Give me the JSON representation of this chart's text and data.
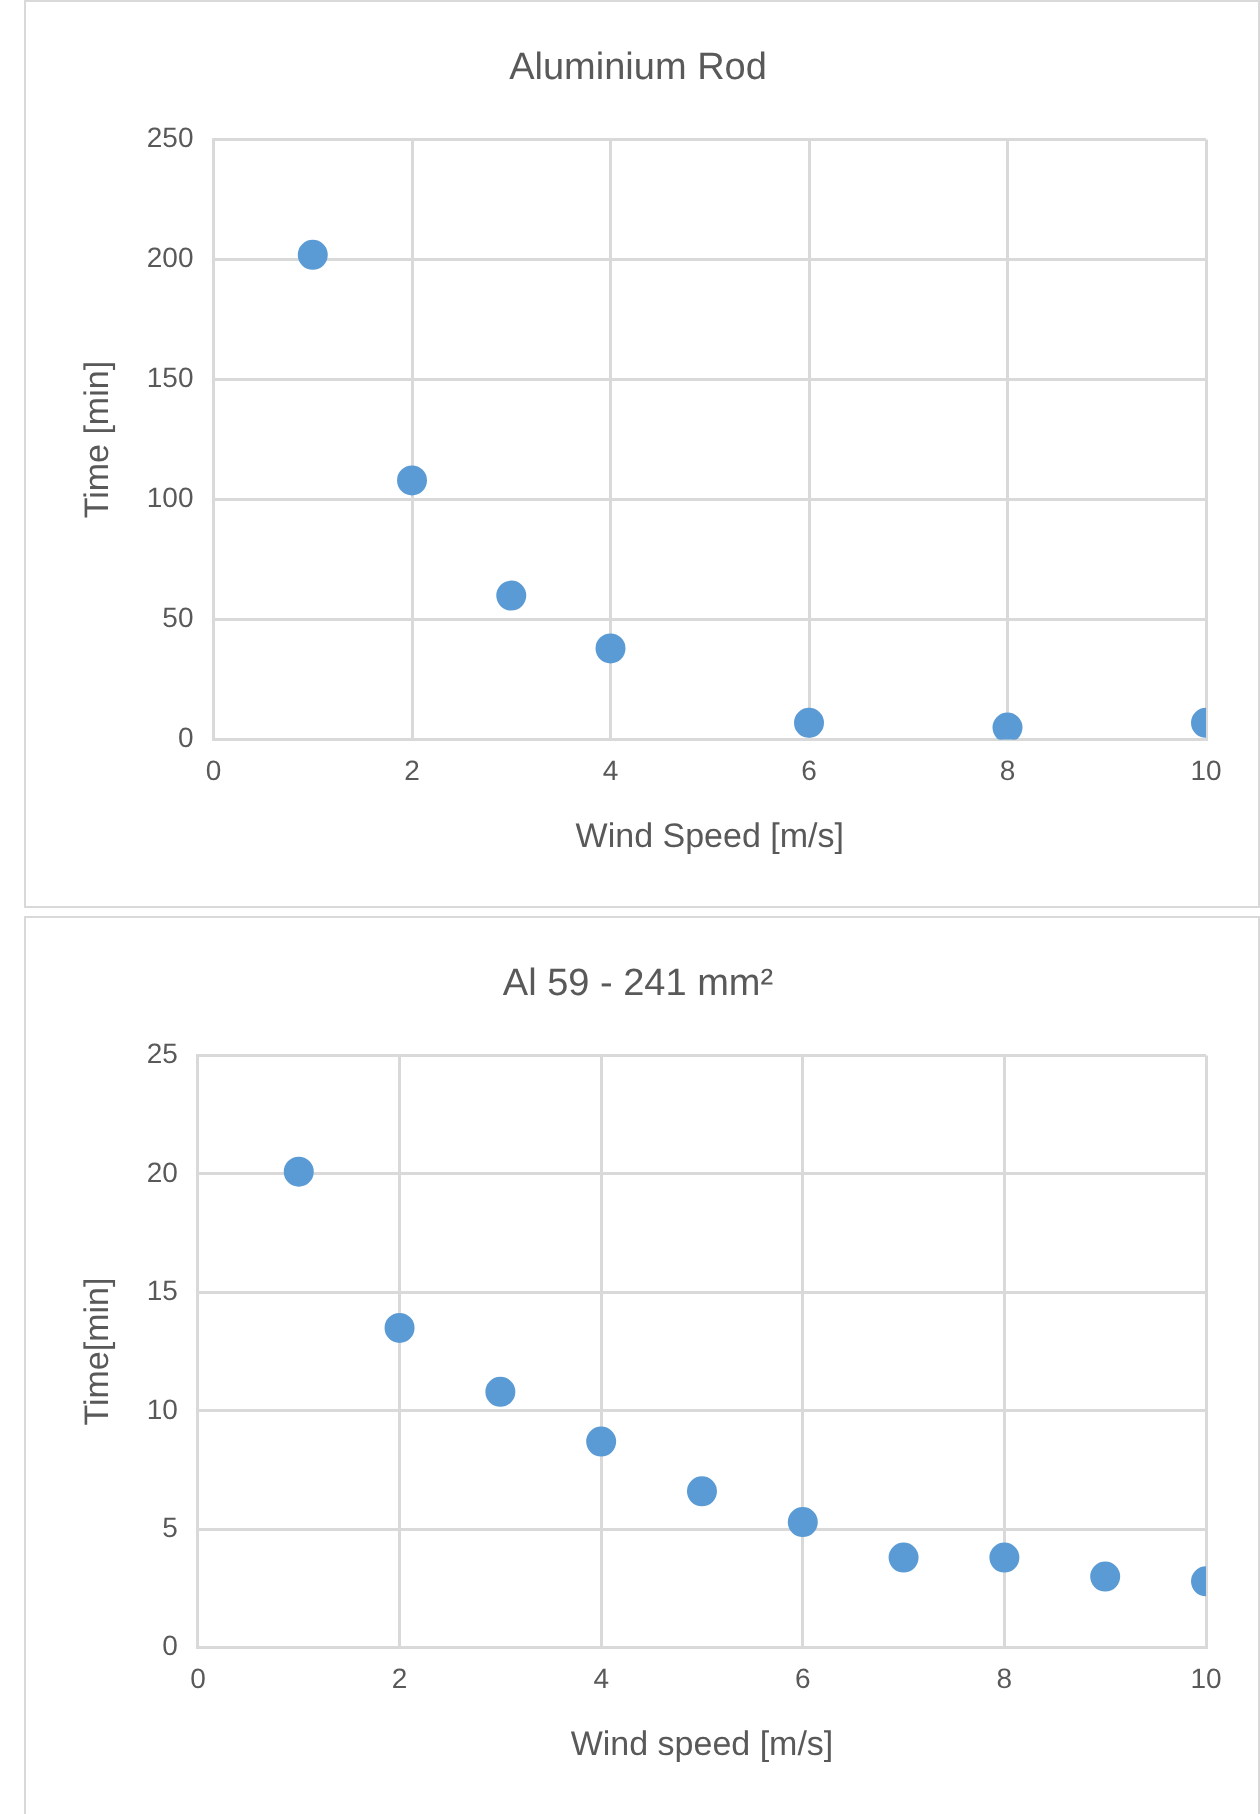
{
  "chart_data": [
    {
      "type": "scatter",
      "title": "Aluminium Rod",
      "xlabel": "Wind Speed [m/s]",
      "ylabel": "Time [min]",
      "x": [
        1,
        2,
        3,
        4,
        6,
        8,
        10
      ],
      "series": [
        {
          "color": "#5b9bd5",
          "values": [
            202,
            108,
            60,
            38,
            7,
            5,
            7
          ]
        }
      ],
      "xlim": [
        0,
        10
      ],
      "xticks": [
        0,
        2,
        4,
        6,
        8,
        10
      ],
      "ylim": [
        0,
        250
      ],
      "yticks": [
        0,
        50,
        100,
        150,
        200,
        250
      ],
      "grid": true,
      "legend": false,
      "marker": "circle"
    },
    {
      "type": "scatter",
      "title": "Al 59 - 241 mm²",
      "xlabel": "Wind speed [m/s]",
      "ylabel": "Time[min]",
      "x": [
        1,
        2,
        3,
        4,
        5,
        6,
        7,
        8,
        9,
        10
      ],
      "series": [
        {
          "color": "#5b9bd5",
          "values": [
            20.1,
            13.5,
            10.8,
            8.7,
            6.6,
            5.3,
            3.8,
            3.8,
            3.0,
            2.8
          ]
        }
      ],
      "xlim": [
        0,
        10
      ],
      "xticks": [
        0,
        2,
        4,
        6,
        8,
        10
      ],
      "ylim": [
        0,
        25
      ],
      "yticks": [
        0,
        5,
        10,
        15,
        20,
        25
      ],
      "grid": true,
      "legend": false,
      "marker": "circle"
    }
  ]
}
